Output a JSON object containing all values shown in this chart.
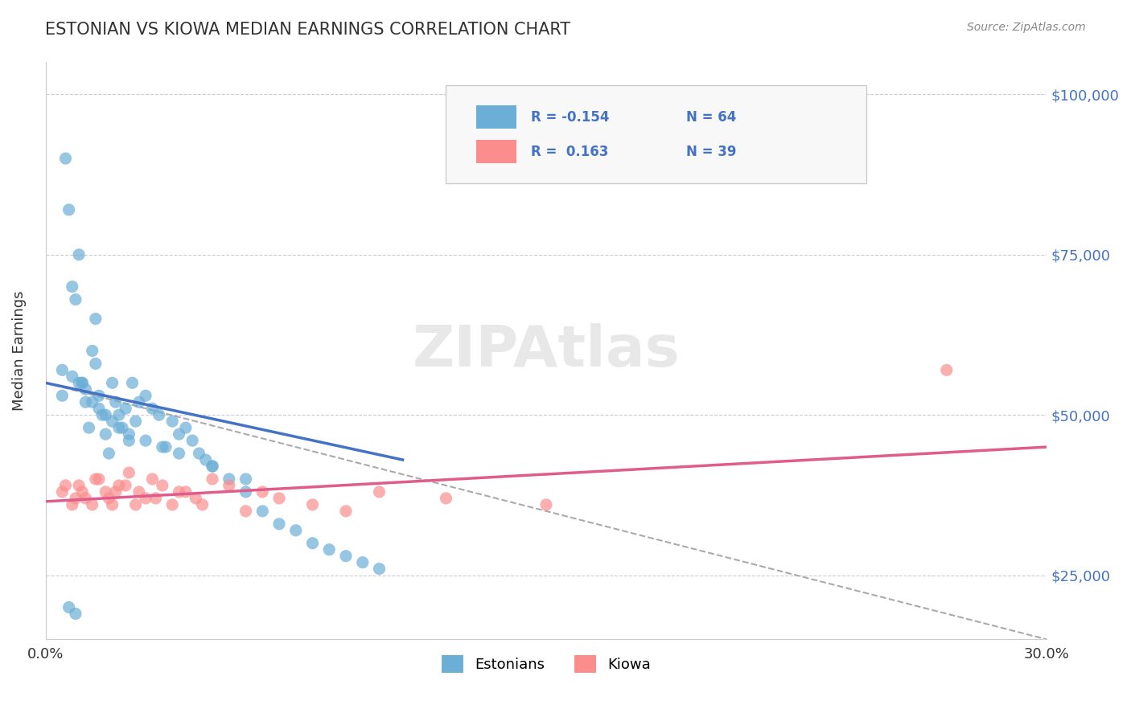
{
  "title": "ESTONIAN VS KIOWA MEDIAN EARNINGS CORRELATION CHART",
  "source_text": "Source: ZipAtlas.com",
  "xlabel": "",
  "ylabel": "Median Earnings",
  "xlim": [
    0.0,
    0.3
  ],
  "ylim": [
    15000,
    105000
  ],
  "xtick_vals": [
    0.0,
    0.3
  ],
  "xtick_labels": [
    "0.0%",
    "30.0%"
  ],
  "ytick_vals": [
    25000,
    50000,
    75000,
    100000
  ],
  "ytick_labels": [
    "$25,000",
    "$50,000",
    "$75,000",
    "$100,000"
  ],
  "blue_color": "#6baed6",
  "pink_color": "#fc8d8d",
  "blue_line_color": "#4472c4",
  "pink_line_color": "#e05c8a",
  "dashed_line_color": "#aaaaaa",
  "legend_R1": "-0.154",
  "legend_N1": "64",
  "legend_R2": "0.163",
  "legend_N2": "39",
  "legend_label1": "Estonians",
  "legend_label2": "Kiowa",
  "watermark": "ZIPAtlas",
  "blue_scatter_x": [
    0.005,
    0.008,
    0.006,
    0.007,
    0.009,
    0.01,
    0.011,
    0.012,
    0.013,
    0.014,
    0.015,
    0.016,
    0.017,
    0.018,
    0.019,
    0.02,
    0.021,
    0.022,
    0.023,
    0.024,
    0.025,
    0.026,
    0.027,
    0.028,
    0.03,
    0.032,
    0.034,
    0.036,
    0.038,
    0.04,
    0.042,
    0.044,
    0.046,
    0.048,
    0.05,
    0.055,
    0.06,
    0.065,
    0.07,
    0.075,
    0.08,
    0.085,
    0.09,
    0.095,
    0.1,
    0.005,
    0.008,
    0.01,
    0.012,
    0.014,
    0.016,
    0.018,
    0.02,
    0.022,
    0.025,
    0.03,
    0.035,
    0.04,
    0.05,
    0.06,
    0.007,
    0.009,
    0.011,
    0.015
  ],
  "blue_scatter_y": [
    57000,
    70000,
    90000,
    82000,
    68000,
    75000,
    55000,
    52000,
    48000,
    60000,
    58000,
    53000,
    50000,
    47000,
    44000,
    55000,
    52000,
    50000,
    48000,
    51000,
    46000,
    55000,
    49000,
    52000,
    53000,
    51000,
    50000,
    45000,
    49000,
    47000,
    48000,
    46000,
    44000,
    43000,
    42000,
    40000,
    38000,
    35000,
    33000,
    32000,
    30000,
    29000,
    28000,
    27000,
    26000,
    53000,
    56000,
    55000,
    54000,
    52000,
    51000,
    50000,
    49000,
    48000,
    47000,
    46000,
    45000,
    44000,
    42000,
    40000,
    20000,
    19000,
    55000,
    65000
  ],
  "pink_scatter_x": [
    0.005,
    0.008,
    0.01,
    0.012,
    0.015,
    0.018,
    0.02,
    0.022,
    0.025,
    0.028,
    0.03,
    0.032,
    0.035,
    0.038,
    0.04,
    0.045,
    0.05,
    0.055,
    0.06,
    0.065,
    0.07,
    0.08,
    0.09,
    0.1,
    0.12,
    0.15,
    0.006,
    0.009,
    0.011,
    0.014,
    0.016,
    0.019,
    0.021,
    0.024,
    0.027,
    0.033,
    0.042,
    0.047,
    0.27
  ],
  "pink_scatter_y": [
    38000,
    36000,
    39000,
    37000,
    40000,
    38000,
    36000,
    39000,
    41000,
    38000,
    37000,
    40000,
    39000,
    36000,
    38000,
    37000,
    40000,
    39000,
    35000,
    38000,
    37000,
    36000,
    35000,
    38000,
    37000,
    36000,
    39000,
    37000,
    38000,
    36000,
    40000,
    37000,
    38000,
    39000,
    36000,
    37000,
    38000,
    36000,
    57000
  ],
  "blue_trend_x": [
    0.0,
    0.107
  ],
  "blue_trend_y": [
    55000,
    43000
  ],
  "pink_trend_x": [
    0.0,
    0.3
  ],
  "pink_trend_y": [
    36500,
    45000
  ],
  "dash_trend_x": [
    0.0,
    0.3
  ],
  "dash_trend_y": [
    55000,
    15000
  ]
}
